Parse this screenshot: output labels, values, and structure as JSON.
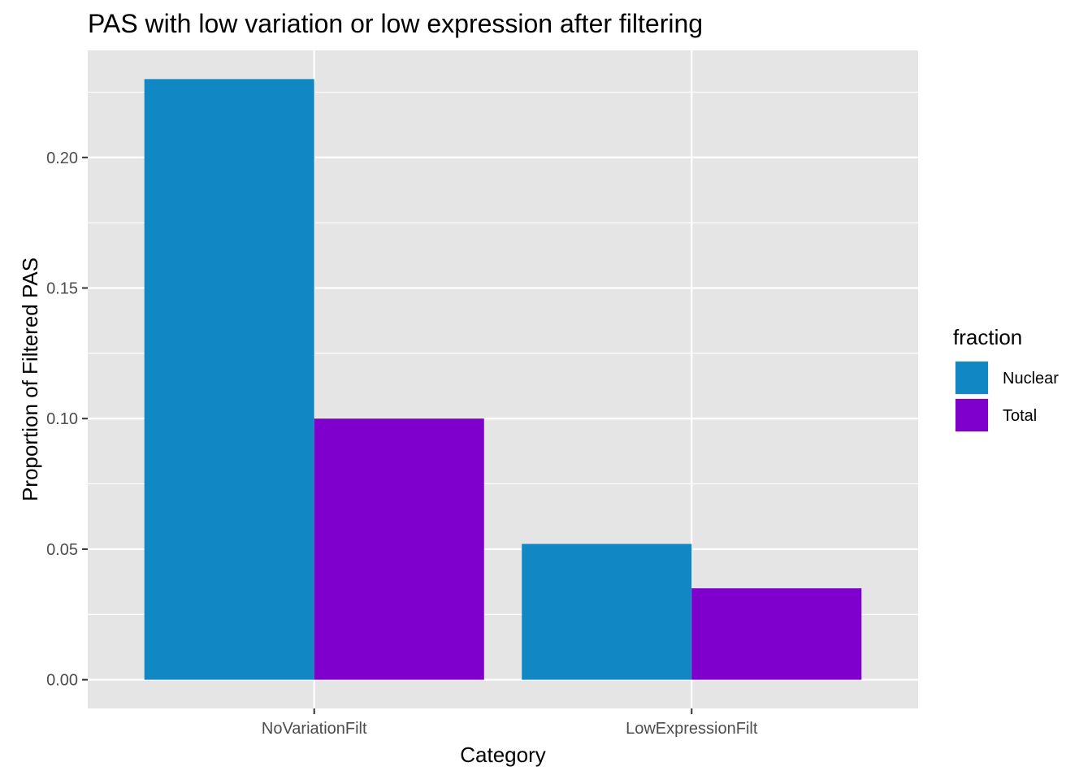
{
  "chart_data": {
    "type": "bar",
    "title": "PAS with low variation or low expression after filtering",
    "xlabel": "Category",
    "ylabel": "Proportion of Filtered PAS",
    "categories": [
      "NoVariationFilt",
      "LowExpressionFilt"
    ],
    "series": [
      {
        "name": "Nuclear",
        "color": "#1188C4",
        "values": [
          0.23,
          0.052
        ]
      },
      {
        "name": "Total",
        "color": "#7F00CC",
        "values": [
          0.1,
          0.035
        ]
      }
    ],
    "ylim": [
      -0.011,
      0.241
    ],
    "yticks": [
      0.0,
      0.05,
      0.1,
      0.15,
      0.2
    ],
    "ytick_labels": [
      "0.00",
      "0.05",
      "0.10",
      "0.15",
      "0.20"
    ],
    "legend": {
      "title": "fraction",
      "position": "right"
    },
    "grid": true,
    "panel_background": "#E5E5E5",
    "grid_color": "#FFFFFF"
  }
}
